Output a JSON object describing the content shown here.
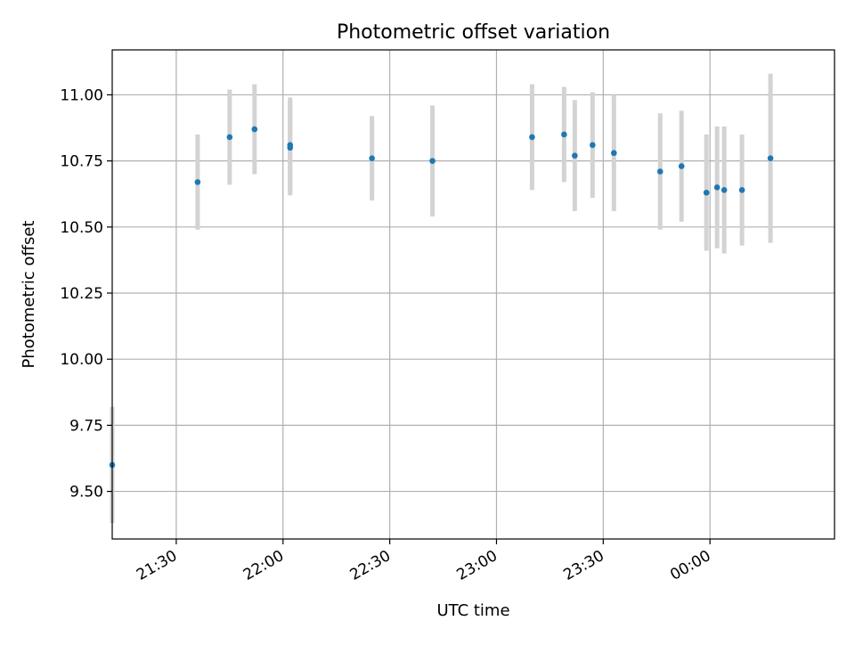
{
  "chart_data": {
    "type": "scatter",
    "title": "Photometric offset variation",
    "xlabel": "UTC time",
    "ylabel": "Photometric offset",
    "x_ticks": [
      "21:30",
      "22:00",
      "22:30",
      "23:00",
      "23:30",
      "00:00"
    ],
    "y_ticks": [
      "9.50",
      "9.75",
      "10.00",
      "10.25",
      "10.50",
      "10.75",
      "11.00"
    ],
    "xlim": [
      "21:12",
      "00:35"
    ],
    "ylim": [
      9.32,
      11.17
    ],
    "grid": true,
    "errorbar_color": "#d3d3d3",
    "point_color": "#1f77b4",
    "series": [
      {
        "points": [
          {
            "x": "21:12",
            "y": 9.6,
            "yerr": 0.22
          },
          {
            "x": "21:36",
            "y": 10.67,
            "yerr": 0.18
          },
          {
            "x": "21:45",
            "y": 10.84,
            "yerr": 0.18
          },
          {
            "x": "21:52",
            "y": 10.87,
            "yerr": 0.17
          },
          {
            "x": "22:02",
            "y": 10.8,
            "yerr": 0.18
          },
          {
            "x": "22:02",
            "y": 10.81,
            "yerr": 0.18
          },
          {
            "x": "22:25",
            "y": 10.76,
            "yerr": 0.16
          },
          {
            "x": "22:42",
            "y": 10.75,
            "yerr": 0.21
          },
          {
            "x": "23:10",
            "y": 10.84,
            "yerr": 0.2
          },
          {
            "x": "23:19",
            "y": 10.85,
            "yerr": 0.18
          },
          {
            "x": "23:22",
            "y": 10.77,
            "yerr": 0.21
          },
          {
            "x": "23:27",
            "y": 10.81,
            "yerr": 0.2
          },
          {
            "x": "23:33",
            "y": 10.78,
            "yerr": 0.22
          },
          {
            "x": "23:46",
            "y": 10.71,
            "yerr": 0.22
          },
          {
            "x": "23:52",
            "y": 10.73,
            "yerr": 0.21
          },
          {
            "x": "23:59",
            "y": 10.63,
            "yerr": 0.22
          },
          {
            "x": "00:02",
            "y": 10.65,
            "yerr": 0.23
          },
          {
            "x": "00:04",
            "y": 10.64,
            "yerr": 0.24
          },
          {
            "x": "00:09",
            "y": 10.64,
            "yerr": 0.21
          },
          {
            "x": "00:17",
            "y": 10.76,
            "yerr": 0.32
          }
        ]
      }
    ]
  }
}
